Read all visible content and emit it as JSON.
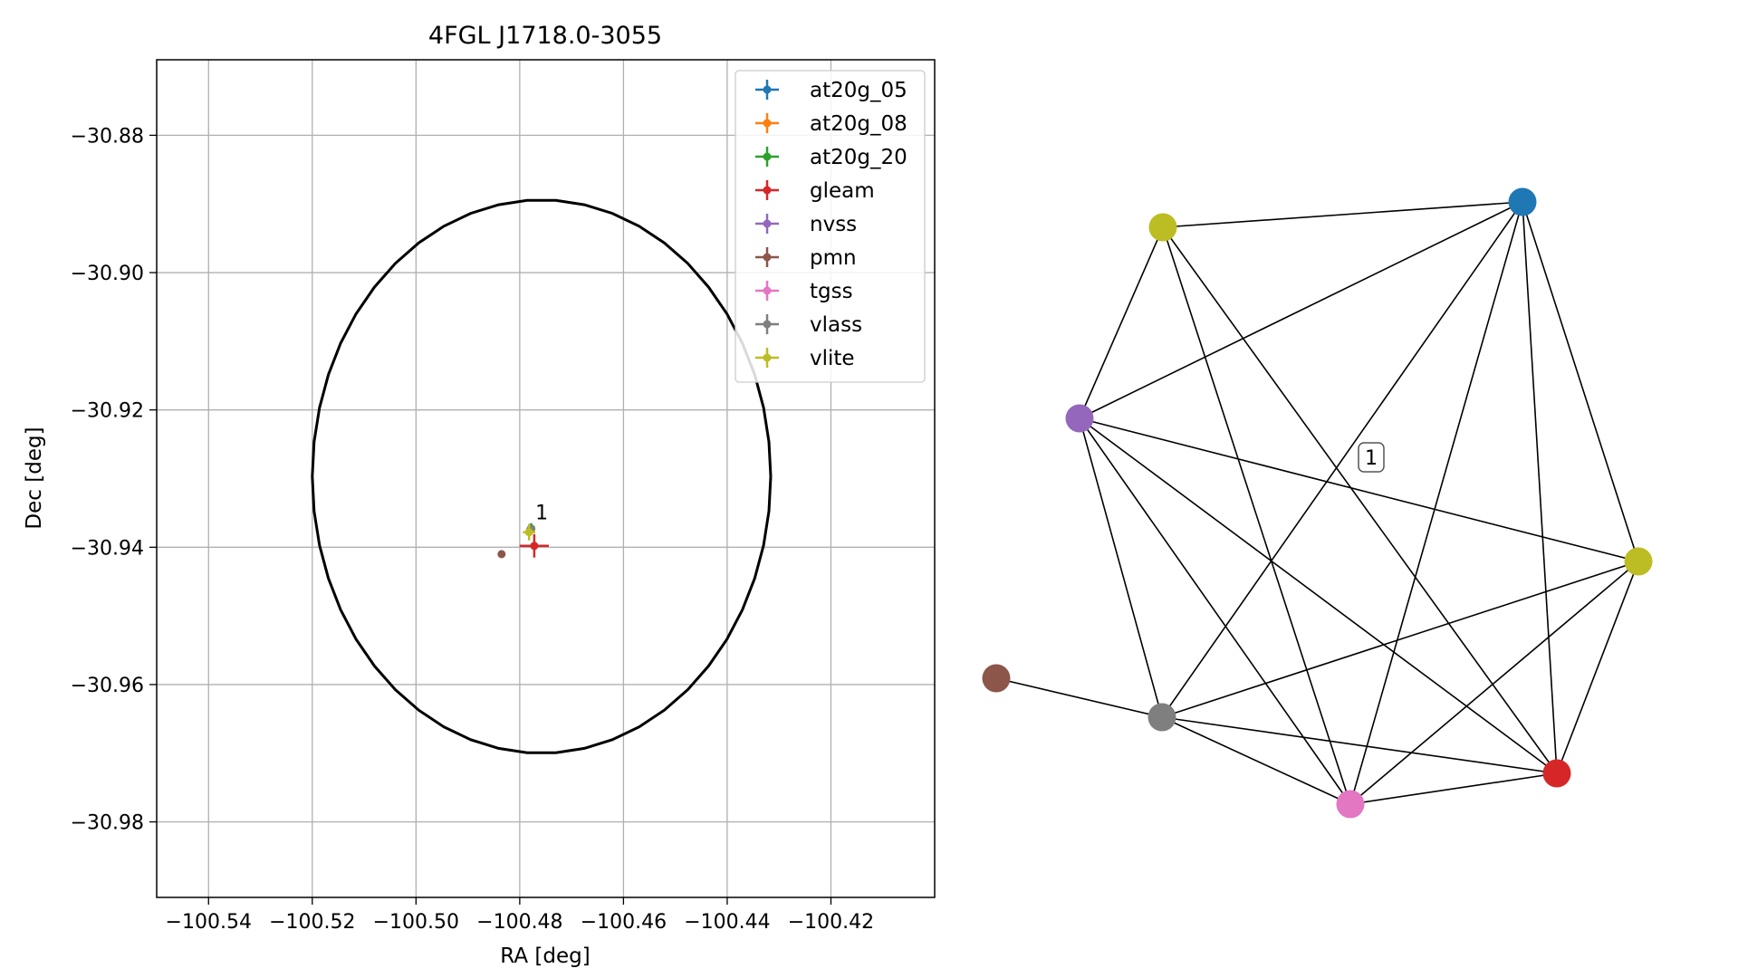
{
  "chart_data": [
    {
      "type": "scatter",
      "title": "4FGL J1718.0-3055",
      "xlabel": "RA [deg]",
      "ylabel": "Dec [deg]",
      "xlim": [
        -100.55,
        -100.4
      ],
      "ylim": [
        -30.991,
        -30.869
      ],
      "xticks": [
        -100.54,
        -100.52,
        -100.5,
        -100.48,
        -100.46,
        -100.44,
        -100.42
      ],
      "xtick_labels": [
        "−100.54",
        "−100.52",
        "−100.50",
        "−100.48",
        "−100.46",
        "−100.44",
        "−100.42"
      ],
      "yticks": [
        -30.88,
        -30.9,
        -30.92,
        -30.94,
        -30.96,
        -30.98
      ],
      "ytick_labels": [
        "−30.88",
        "−30.90",
        "−30.92",
        "−30.94",
        "−30.96",
        "−30.98"
      ],
      "grid": true,
      "legend_position": "top-right",
      "ellipse": {
        "center": [
          -100.4758,
          -30.9297
        ],
        "ra_semi_axis": 0.0442,
        "dec_semi_axis": 0.0403
      },
      "series": [
        {
          "name": "at20g_05",
          "color": "#1f77b4",
          "points": [
            {
              "x": -100.4778,
              "y": -30.9373,
              "xerr": 0.0008,
              "yerr": 0.0008
            }
          ]
        },
        {
          "name": "at20g_08",
          "color": "#ff7f0e",
          "points": [
            {
              "x": -100.4778,
              "y": -30.9373,
              "xerr": 0.0006,
              "yerr": 0.0006
            }
          ]
        },
        {
          "name": "at20g_20",
          "color": "#2ca02c",
          "points": [
            {
              "x": -100.4778,
              "y": -30.9373,
              "xerr": 0.0006,
              "yerr": 0.0006
            }
          ]
        },
        {
          "name": "gleam",
          "color": "#d62728",
          "points": [
            {
              "x": -100.4772,
              "y": -30.9398,
              "xerr": 0.0028,
              "yerr": 0.0017
            }
          ]
        },
        {
          "name": "nvss",
          "color": "#9467bd",
          "points": [
            {
              "x": -100.478,
              "y": -30.9375,
              "xerr": 0.0003,
              "yerr": 0.0003
            }
          ]
        },
        {
          "name": "pmn",
          "color": "#8c564b",
          "points": [
            {
              "x": -100.4835,
              "y": -30.941,
              "xerr": 0.0001,
              "yerr": 0.0001
            }
          ]
        },
        {
          "name": "tgss",
          "color": "#e377c2",
          "points": [
            {
              "x": -100.4779,
              "y": -30.9374,
              "xerr": 0.0003,
              "yerr": 0.0003
            }
          ]
        },
        {
          "name": "vlass",
          "color": "#7f7f7f",
          "points": [
            {
              "x": -100.4779,
              "y": -30.9374,
              "xerr": 0.0002,
              "yerr": 0.0002
            }
          ]
        },
        {
          "name": "vlite",
          "color": "#bcbd22",
          "points": [
            {
              "x": -100.4782,
              "y": -30.9378,
              "xerr": 0.0012,
              "yerr": 0.0012
            }
          ]
        }
      ],
      "annotations": [
        {
          "text": "1",
          "x": -100.4775,
          "y": -30.9362
        }
      ]
    },
    {
      "type": "network",
      "label_box": "1",
      "nodes": [
        {
          "id": "blue-top",
          "color": "#1f77b4"
        },
        {
          "id": "olive-top",
          "color": "#bcbd22"
        },
        {
          "id": "purple",
          "color": "#9467bd"
        },
        {
          "id": "olive-right",
          "color": "#bcbd22"
        },
        {
          "id": "brown",
          "color": "#8c564b"
        },
        {
          "id": "gray",
          "color": "#7f7f7f"
        },
        {
          "id": "pink",
          "color": "#e377c2"
        },
        {
          "id": "red",
          "color": "#d62728"
        }
      ],
      "edges": [
        [
          "olive-top",
          "blue-top"
        ],
        [
          "olive-top",
          "purple"
        ],
        [
          "olive-top",
          "pink"
        ],
        [
          "olive-top",
          "red"
        ],
        [
          "purple",
          "blue-top"
        ],
        [
          "purple",
          "olive-right"
        ],
        [
          "purple",
          "gray"
        ],
        [
          "purple",
          "pink"
        ],
        [
          "purple",
          "red"
        ],
        [
          "blue-top",
          "gray"
        ],
        [
          "blue-top",
          "pink"
        ],
        [
          "blue-top",
          "red"
        ],
        [
          "blue-top",
          "olive-right"
        ],
        [
          "olive-right",
          "gray"
        ],
        [
          "olive-right",
          "pink"
        ],
        [
          "olive-right",
          "red"
        ],
        [
          "brown",
          "gray"
        ],
        [
          "gray",
          "pink"
        ],
        [
          "gray",
          "red"
        ],
        [
          "pink",
          "red"
        ]
      ]
    }
  ]
}
